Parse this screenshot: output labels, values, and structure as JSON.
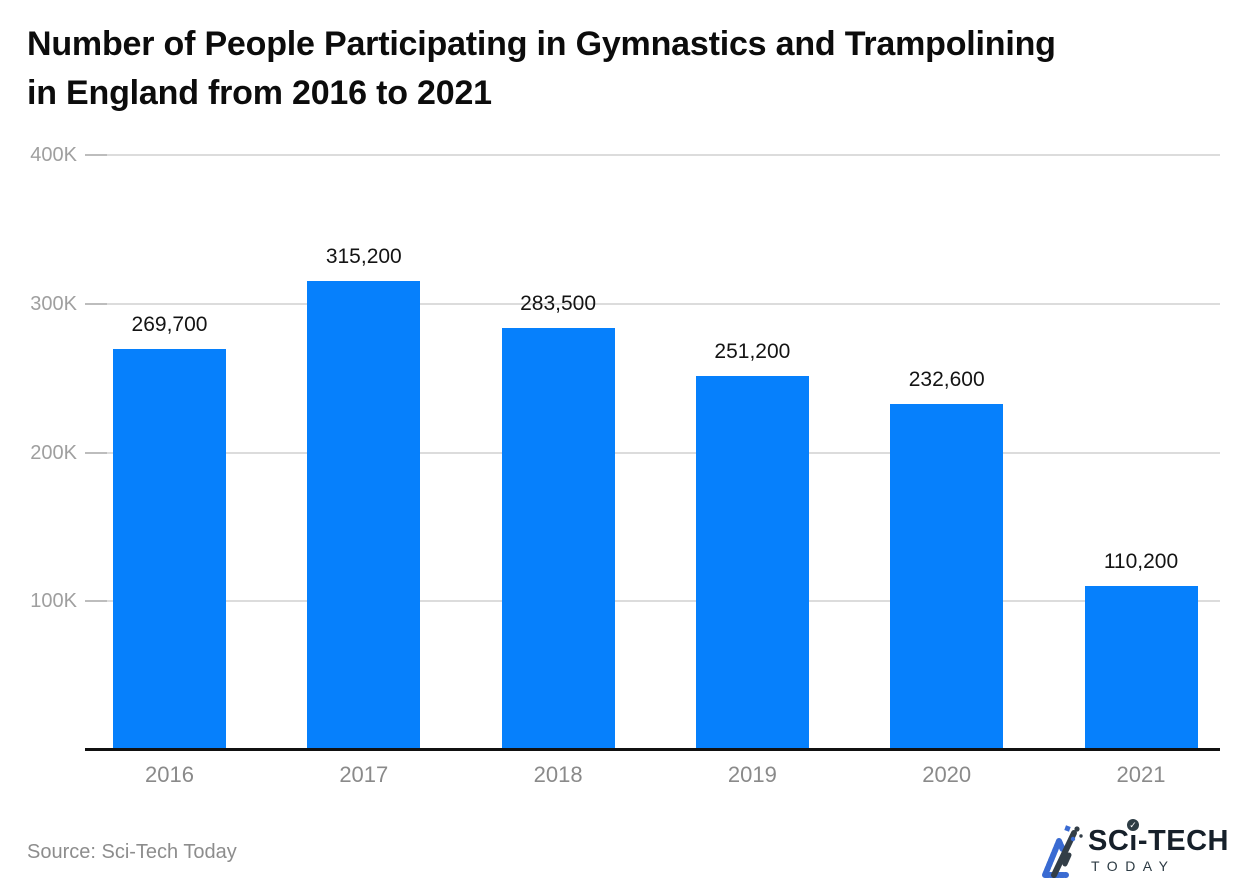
{
  "chart_data": {
    "type": "bar",
    "title": "Number of People Participating in Gymnastics and Trampolining in England from 2016 to 2021",
    "categories": [
      "2016",
      "2017",
      "2018",
      "2019",
      "2020",
      "2021"
    ],
    "values": [
      269700,
      315200,
      283500,
      251200,
      232600,
      110200
    ],
    "value_labels": [
      "269,700",
      "315,200",
      "283,500",
      "251,200",
      "232,600",
      "110,200"
    ],
    "xlabel": "",
    "ylabel": "",
    "ylim": [
      0,
      400000
    ],
    "yticks": [
      {
        "value": 100000,
        "label": "100K"
      },
      {
        "value": 200000,
        "label": "200K"
      },
      {
        "value": 300000,
        "label": "300K"
      },
      {
        "value": 400000,
        "label": "400K"
      }
    ],
    "grid": true,
    "legend": false,
    "source": "Source: Sci-Tech Today"
  },
  "colors": {
    "bar": "#0680fc",
    "gridline": "#dcdcdc",
    "tick_mark": "#bdbdbd",
    "axis_line": "#111111",
    "ytick_label": "#9f9f9f",
    "xtick_label": "#8a8a8a",
    "value_label": "#141414",
    "title": "#0c0c0c",
    "source": "#8d8d8d",
    "logo_blue": "#3a6bd2",
    "logo_dark": "#333e47"
  },
  "logo": {
    "name_part1": "SC",
    "name_i": "ı",
    "name_part2": "-TECH",
    "check_glyph": "✓",
    "subtitle": "TODAY"
  }
}
